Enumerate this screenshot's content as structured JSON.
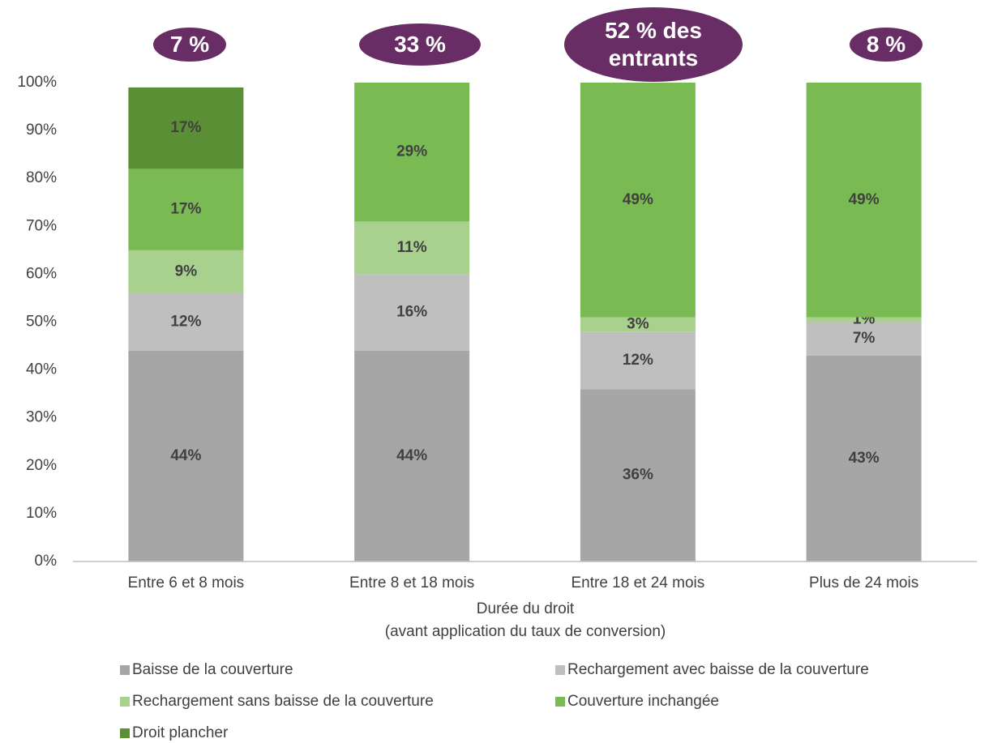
{
  "chart_data": {
    "type": "stacked_bar",
    "categories": [
      "Entre 6 et 8 mois",
      "Entre 8 et 18 mois",
      "Entre 18 et 24 mois",
      "Plus de 24 mois"
    ],
    "series": [
      {
        "name": "Baisse de la couverture",
        "color": "#a6a6a6",
        "values": [
          44,
          44,
          36,
          43
        ],
        "value_labels": [
          "44%",
          "44%",
          "36%",
          "43%"
        ]
      },
      {
        "name": "Rechargement avec baisse de la couverture",
        "color": "#bfbfbf",
        "values": [
          12,
          16,
          12,
          7
        ],
        "value_labels": [
          "12%",
          "16%",
          "12%",
          "7%"
        ]
      },
      {
        "name": "Rechargement sans baisse de la couverture",
        "color": "#a9d18e",
        "values": [
          9,
          11,
          3,
          1
        ],
        "value_labels": [
          "9%",
          "11%",
          "3%",
          "1%"
        ]
      },
      {
        "name": "Couverture inchangée",
        "color": "#7aba53",
        "values": [
          17,
          29,
          49,
          49
        ],
        "value_labels": [
          "17%",
          "29%",
          "49%",
          "49%"
        ]
      },
      {
        "name": "Droit plancher",
        "color": "#5b8f35",
        "values": [
          17,
          null,
          null,
          null
        ],
        "value_labels": [
          "17%",
          null,
          null,
          null
        ]
      }
    ],
    "ylim": [
      0,
      100
    ],
    "yticks": [
      {
        "value": 0,
        "label": "0%"
      },
      {
        "value": 10,
        "label": "10%"
      },
      {
        "value": 20,
        "label": "20%"
      },
      {
        "value": 30,
        "label": "30%"
      },
      {
        "value": 40,
        "label": "40%"
      },
      {
        "value": 50,
        "label": "50%"
      },
      {
        "value": 60,
        "label": "60%"
      },
      {
        "value": 70,
        "label": "70%"
      },
      {
        "value": 80,
        "label": "80%"
      },
      {
        "value": 90,
        "label": "90%"
      },
      {
        "value": 100,
        "label": "100%"
      }
    ],
    "xlabel": [
      "Durée du droit",
      "(avant application du taux de conversion)"
    ],
    "annotations": [
      "7 %",
      "33 %",
      "52 % des entrants",
      "8 %"
    ],
    "annotation_color": "#692d65",
    "legend": "bottom"
  }
}
